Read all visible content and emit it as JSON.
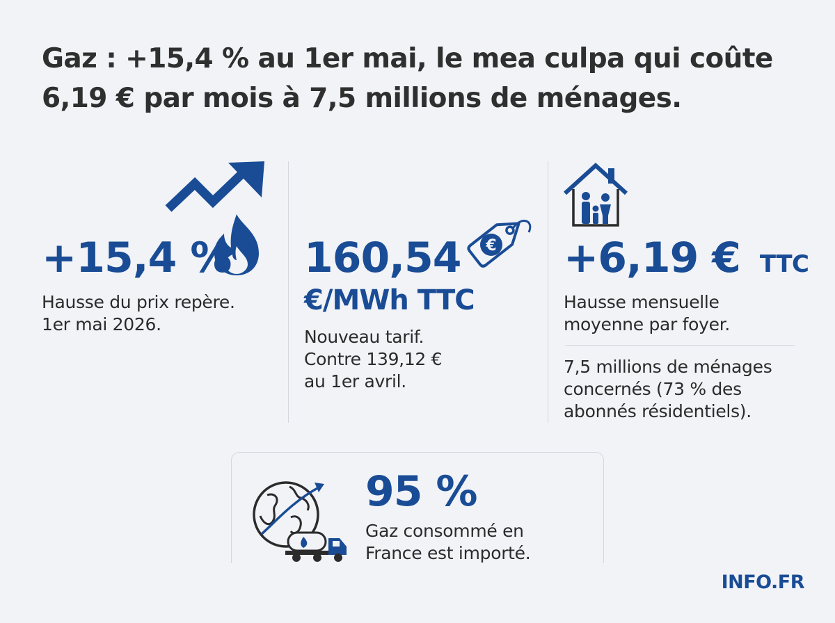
{
  "headline": {
    "line1": "Gaz : +15,4 % au 1er mai, le mea culpa qui coûte",
    "line2": "6,19 € par mois à 7,5 millions de ménages."
  },
  "stat1": {
    "value": "+15,4 %",
    "desc_line1": "Hausse du prix repère.",
    "desc_line2": "1er mai 2026.",
    "icons": [
      "rising-arrow-icon",
      "flame-icon"
    ]
  },
  "stat2": {
    "value": "160,54",
    "unit": "€/MWh TTC",
    "desc_line1": "Nouveau tarif.",
    "desc_line2": "Contre 139,12 €",
    "desc_line3": "au 1er avril.",
    "icons": [
      "euro-price-tag-icon"
    ]
  },
  "stat3": {
    "value": "+6,19 €",
    "unit": "TTC",
    "desc_line1": "Hausse mensuelle",
    "desc_line2": "moyenne par foyer.",
    "note_line1": "7,5 millions de ménages",
    "note_line2": "concernés (73 % des",
    "note_line3": "abonnés résidentiels).",
    "icons": [
      "house-family-icon"
    ]
  },
  "stat4": {
    "value": "95 %",
    "desc_line1": "Gaz consommé en",
    "desc_line2": "France est importé.",
    "icons": [
      "globe-icon",
      "tanker-truck-icon"
    ]
  },
  "brand": "INFO.FR",
  "colors": {
    "accent": "#1a4c95",
    "text": "#2b2b2b",
    "background": "#f1f3f7",
    "divider": "#d3d7de"
  }
}
